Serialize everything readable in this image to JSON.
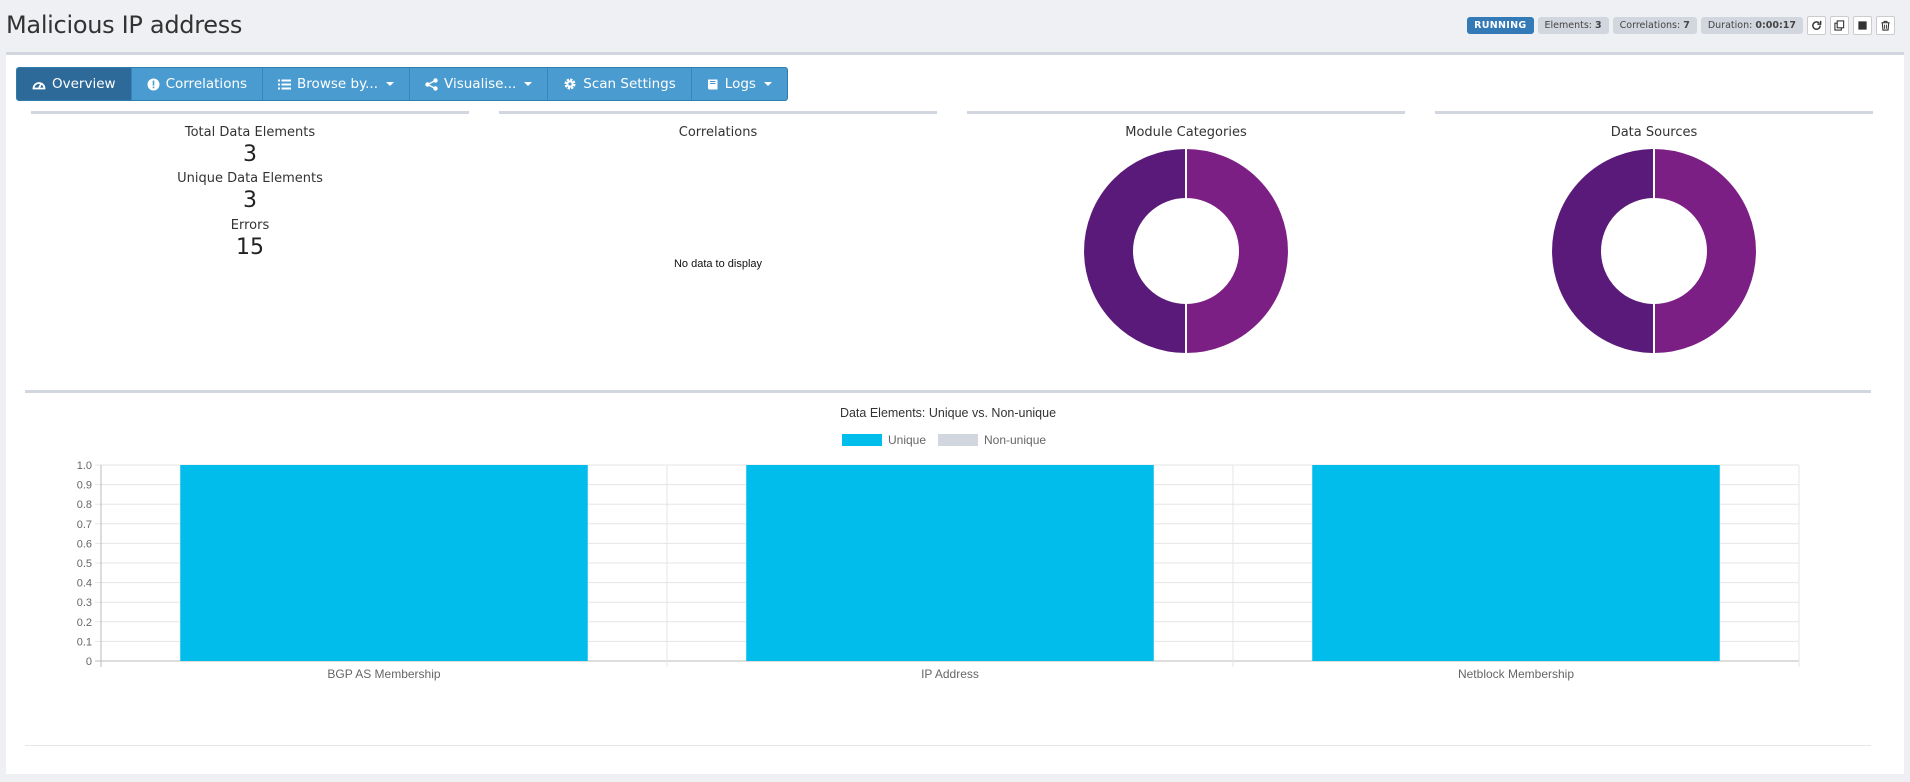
{
  "header": {
    "title": "Malicious IP address",
    "status": "RUNNING",
    "elements_label": "Elements:",
    "elements_value": "3",
    "correlations_label": "Correlations:",
    "correlations_value": "7",
    "duration_label": "Duration:",
    "duration_value": "0:00:17",
    "icons": [
      "refresh-icon",
      "clone-icon",
      "stop-icon",
      "trash-icon"
    ]
  },
  "toolbar": {
    "items": [
      {
        "label": "Overview",
        "icon": "dashboard-icon"
      },
      {
        "label": "Correlations",
        "icon": "exclamation-circle-icon"
      },
      {
        "label": "Browse by...",
        "icon": "list-icon"
      },
      {
        "label": "Visualise...",
        "icon": "share-icon"
      },
      {
        "label": "Scan Settings",
        "icon": "gear-icon"
      },
      {
        "label": "Logs",
        "icon": "book-icon"
      }
    ]
  },
  "summary": {
    "total_label": "Total Data Elements",
    "total_value": "3",
    "unique_label": "Unique Data Elements",
    "unique_value": "3",
    "errors_label": "Errors",
    "errors_value": "15"
  },
  "correlations_card": {
    "title": "Correlations",
    "empty_text": "No data to display"
  },
  "module_categories": {
    "title": "Module Categories",
    "colors": [
      "#7b1f84",
      "#5a1a7a"
    ]
  },
  "data_sources": {
    "title": "Data Sources",
    "colors": [
      "#7b1f84",
      "#5a1a7a"
    ]
  },
  "chart_data": {
    "type": "bar",
    "title": "Data Elements: Unique vs. Non-unique",
    "categories": [
      "BGP AS Membership",
      "IP Address",
      "Netblock Membership"
    ],
    "series": [
      {
        "name": "Unique",
        "values": [
          1,
          1,
          1
        ],
        "color": "#00bdec"
      },
      {
        "name": "Non-unique",
        "values": [
          0,
          0,
          0
        ],
        "color": "#d2d6de"
      }
    ],
    "ylim": [
      0,
      1
    ],
    "yticks": [
      "0",
      "0.1",
      "0.2",
      "0.3",
      "0.4",
      "0.5",
      "0.6",
      "0.7",
      "0.8",
      "0.9",
      "1.0"
    ],
    "legend": "top-center",
    "grid": true
  }
}
